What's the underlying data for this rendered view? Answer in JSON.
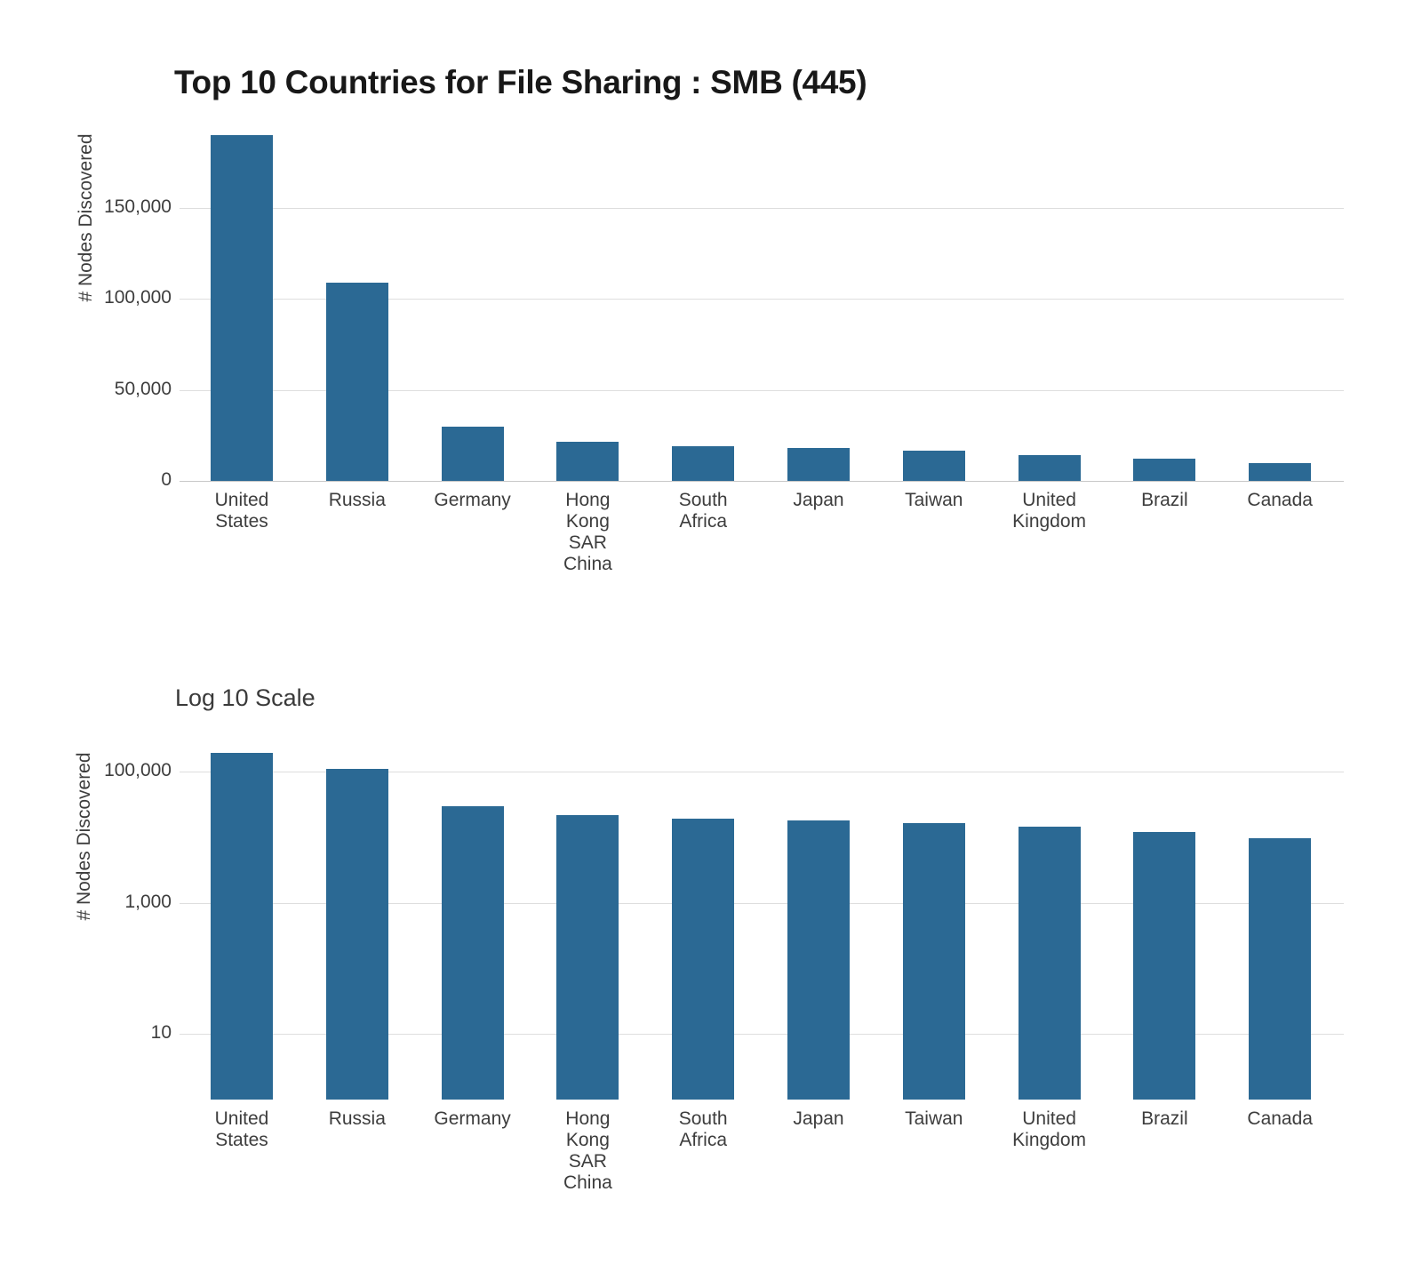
{
  "title": "Top 10 Countries for File Sharing : SMB (445)",
  "log_subtitle": "Log 10 Scale",
  "ylabel": "# Nodes Discovered",
  "colors": {
    "bar": "#2B6994",
    "gridline": "#dedede",
    "axis_line": "#c8c8c8",
    "tick_text": "#3d3d3d",
    "title_text": "#181818"
  },
  "chart_data": [
    {
      "type": "bar",
      "title": "Top 10 Countries for File Sharing : SMB (445)",
      "xlabel": "",
      "ylabel": "# Nodes Discovered",
      "yscale": "linear",
      "grid": true,
      "legend": false,
      "categories": [
        "United States",
        "Russia",
        "Germany",
        "Hong Kong SAR China",
        "South Africa",
        "Japan",
        "Taiwan",
        "United Kingdom",
        "Brazil",
        "Canada"
      ],
      "category_label_lines": [
        [
          "United",
          "States"
        ],
        [
          "Russia"
        ],
        [
          "Germany"
        ],
        [
          "Hong",
          "Kong",
          "SAR",
          "China"
        ],
        [
          "South",
          "Africa"
        ],
        [
          "Japan"
        ],
        [
          "Taiwan"
        ],
        [
          "United",
          "Kingdom"
        ],
        [
          "Brazil"
        ],
        [
          "Canada"
        ]
      ],
      "values": [
        190000,
        109000,
        30000,
        21700,
        18900,
        18100,
        16600,
        14300,
        12000,
        9600
      ],
      "yticks": [
        0,
        50000,
        100000,
        150000
      ],
      "ytick_labels": [
        "0",
        "50,000",
        "100,000",
        "150,000"
      ],
      "ylim": [
        0,
        198000
      ],
      "bar_color": "#2B6994"
    },
    {
      "type": "bar",
      "title": "Log 10 Scale",
      "xlabel": "",
      "ylabel": "# Nodes Discovered",
      "yscale": "log10",
      "grid": true,
      "legend": false,
      "categories": [
        "United States",
        "Russia",
        "Germany",
        "Hong Kong SAR China",
        "South Africa",
        "Japan",
        "Taiwan",
        "United Kingdom",
        "Brazil",
        "Canada"
      ],
      "category_label_lines": [
        [
          "United",
          "States"
        ],
        [
          "Russia"
        ],
        [
          "Germany"
        ],
        [
          "Hong",
          "Kong",
          "SAR",
          "China"
        ],
        [
          "South",
          "Africa"
        ],
        [
          "Japan"
        ],
        [
          "Taiwan"
        ],
        [
          "United",
          "Kingdom"
        ],
        [
          "Brazil"
        ],
        [
          "Canada"
        ]
      ],
      "values": [
        190000,
        109000,
        30000,
        21700,
        18900,
        18100,
        16600,
        14300,
        12000,
        9600
      ],
      "yticks": [
        10,
        1000,
        100000
      ],
      "ytick_labels": [
        "10",
        "1,000",
        "100,000"
      ],
      "ylim": [
        1,
        200000
      ],
      "bar_color": "#2B6994"
    }
  ]
}
